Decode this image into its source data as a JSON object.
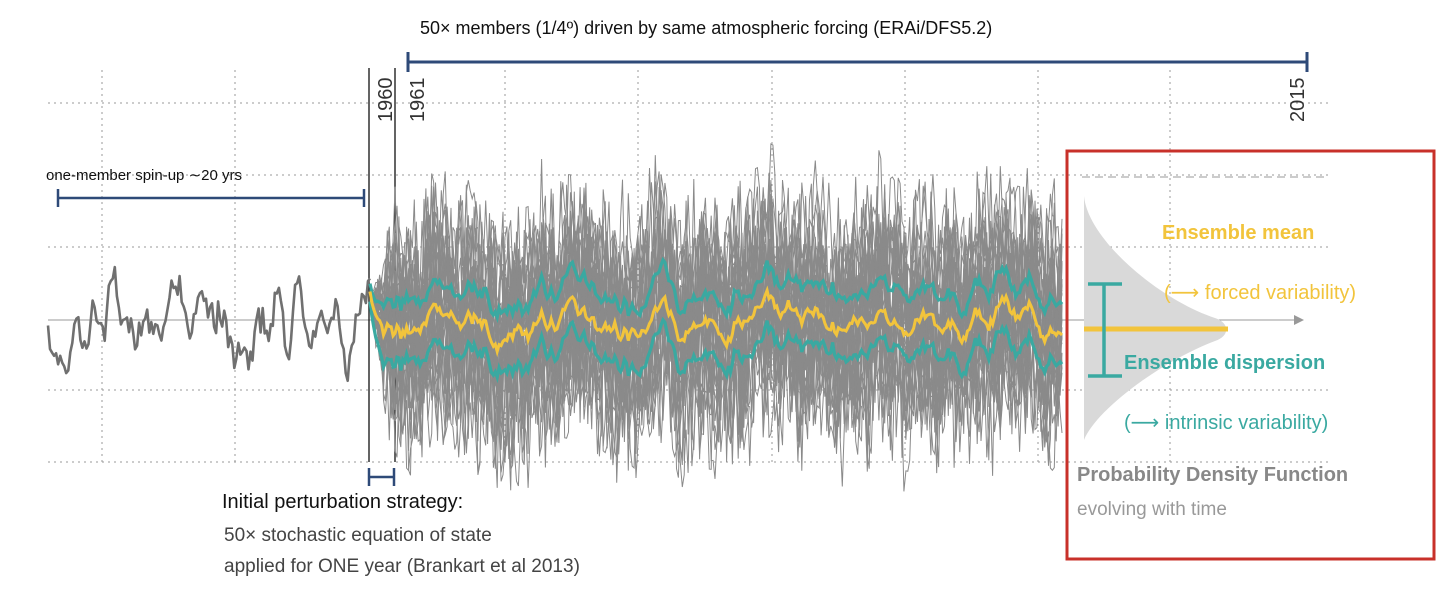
{
  "title": "50× members (1/4º) driven by same atmospheric forcing (ERAi/DFS5.2)",
  "spinup_label": "one-member spin-up ∼20 yrs",
  "years": {
    "y1960": "1960",
    "y1961": "1961",
    "y2015": "2015"
  },
  "perturbation": {
    "heading": "Initial perturbation strategy:",
    "line1": "50× stochastic equation of state",
    "line2": "applied for ONE year (Brankart et al 2013)"
  },
  "legend": {
    "mean_label": "Ensemble mean",
    "mean_note": "(⟶ forced variability)",
    "dispersion_label": "Ensemble dispersion",
    "dispersion_note": "(⟶ intrinsic variability)",
    "pdf_title": "Probability Density Function",
    "pdf_subtitle": "evolving with time"
  },
  "colors": {
    "mean": "#f2c43c",
    "dispersion": "#3aa9a1",
    "members": "#8a8a8a",
    "bracket": "#2e4a78",
    "highlight_box": "#c8312a",
    "pdf_fill": "#d9d9d9"
  }
}
